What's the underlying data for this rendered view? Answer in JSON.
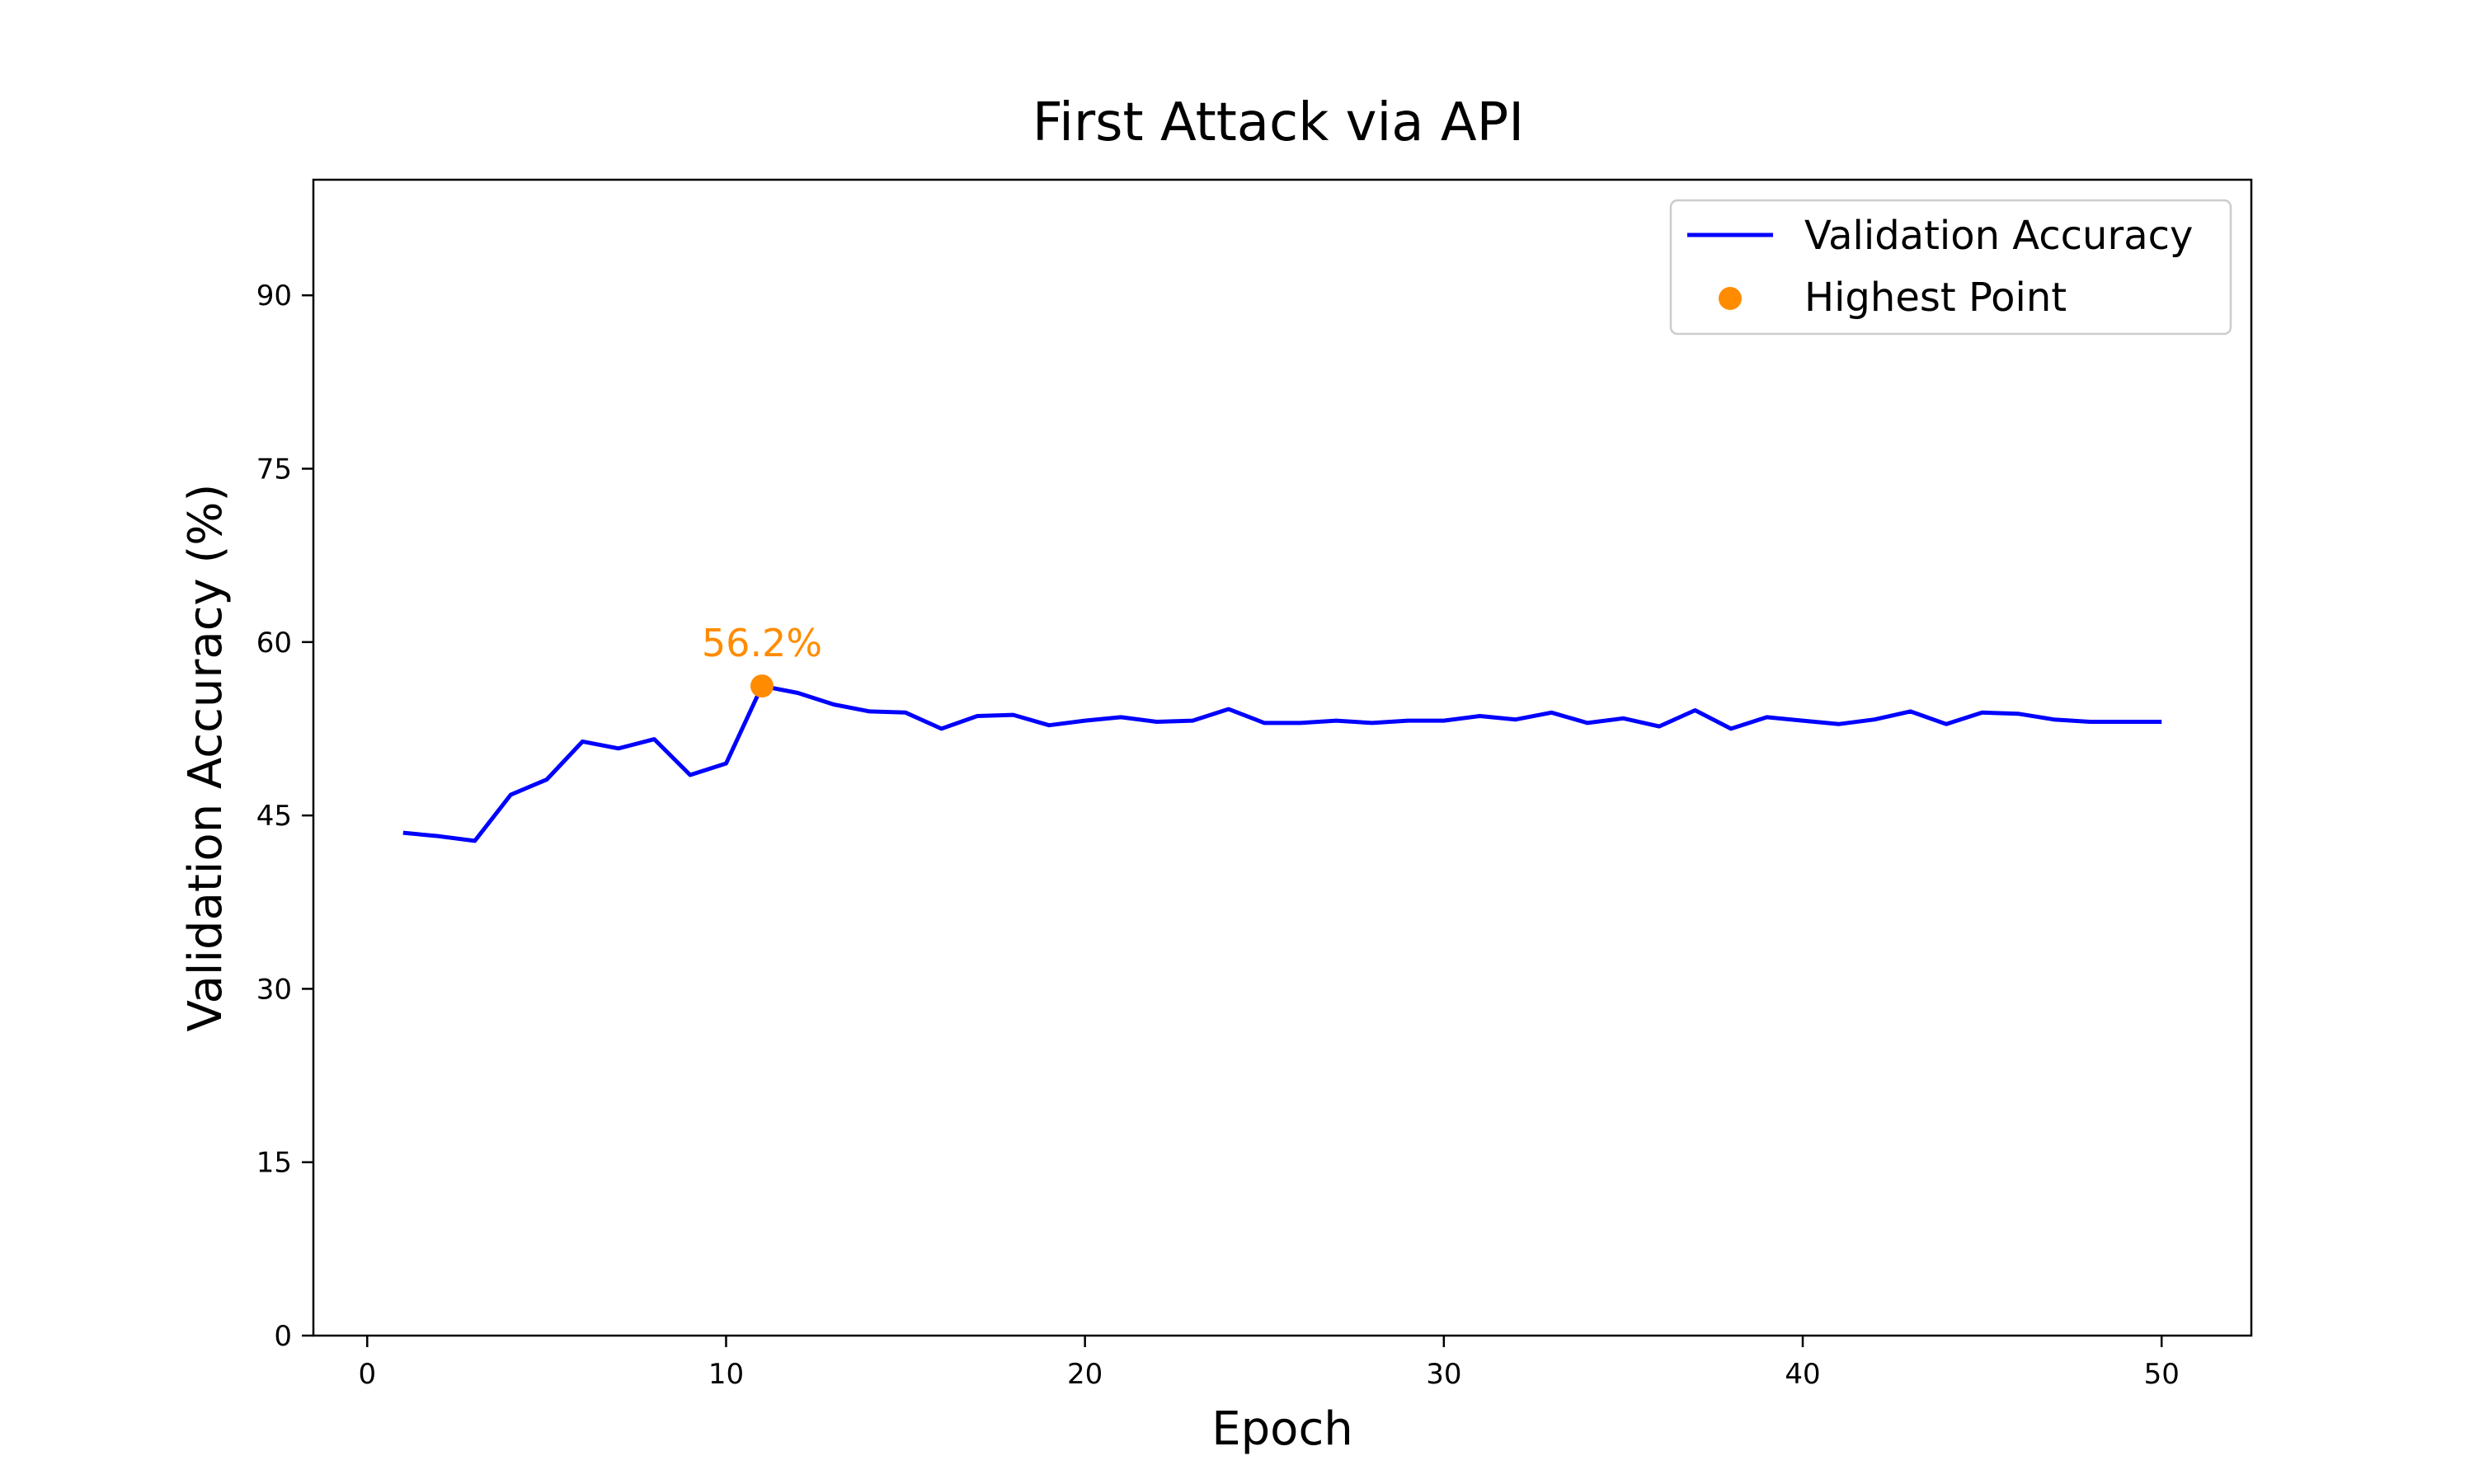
{
  "chart_data": {
    "type": "line",
    "title": "First Attack via API",
    "xlabel": "Epoch",
    "ylabel": "Validation Accuracy (%)",
    "xlim": [
      -1.5,
      52.5
    ],
    "ylim": [
      0,
      100
    ],
    "xticks": [
      0,
      10,
      20,
      30,
      40,
      50
    ],
    "yticks": [
      0,
      15,
      30,
      45,
      60,
      75,
      90
    ],
    "grid": false,
    "legend_position": "top-right",
    "series": [
      {
        "name": "Validation Accuracy",
        "color": "#0000ff",
        "x": [
          1,
          2,
          3,
          4,
          5,
          6,
          7,
          8,
          9,
          10,
          11,
          12,
          13,
          14,
          15,
          16,
          17,
          18,
          19,
          20,
          21,
          22,
          23,
          24,
          25,
          26,
          27,
          28,
          29,
          30,
          31,
          32,
          33,
          34,
          35,
          36,
          37,
          38,
          39,
          40,
          41,
          42,
          43,
          44,
          45,
          46,
          47,
          48,
          49,
          50
        ],
        "values": [
          43.5,
          43.2,
          42.8,
          46.8,
          48.1,
          51.4,
          50.8,
          51.6,
          48.5,
          49.5,
          56.2,
          55.6,
          54.6,
          54.0,
          53.9,
          52.5,
          53.6,
          53.7,
          52.8,
          53.2,
          53.5,
          53.1,
          53.2,
          54.2,
          53.0,
          53.0,
          53.2,
          53.0,
          53.2,
          53.2,
          53.6,
          53.3,
          53.9,
          53.0,
          53.4,
          52.7,
          54.1,
          52.5,
          53.5,
          53.2,
          52.9,
          53.3,
          54.0,
          52.9,
          53.9,
          53.8,
          53.3,
          53.1,
          53.1,
          53.1
        ]
      }
    ],
    "highlight": {
      "name": "Highest Point",
      "color": "#ff8c00",
      "x": 11,
      "y": 56.2,
      "label": "56.2%"
    }
  }
}
